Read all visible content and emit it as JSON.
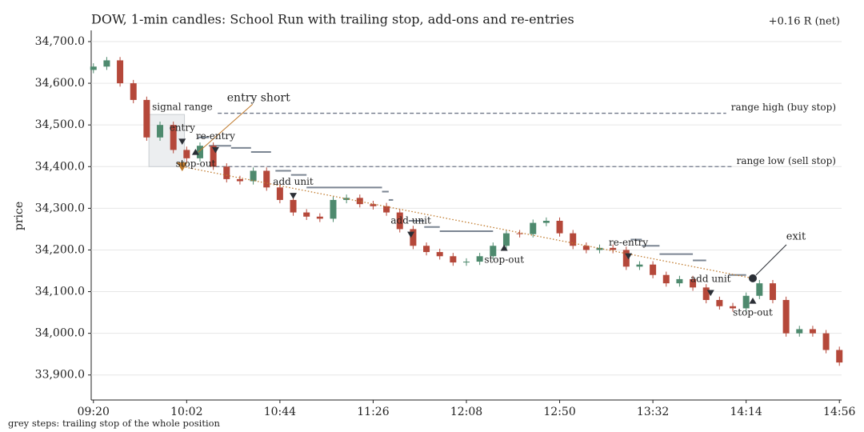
{
  "chart_data": {
    "type": "candlestick",
    "title": "DOW, 1-min candles: School Run with trailing stop, add-ons and re-entries",
    "result": "+0.16 R (net)",
    "result_color": "#b8702f",
    "ylabel": "price",
    "caption": "grey steps: trailing stop of the whole position",
    "up_color": "#4e8a6e",
    "down_color": "#b5483a",
    "grid": true,
    "xlim": [
      "09:19",
      "14:57"
    ],
    "xticks": [
      "09:20",
      "10:02",
      "10:44",
      "11:26",
      "12:08",
      "12:50",
      "13:32",
      "14:14",
      "14:56"
    ],
    "ylim": [
      33840,
      34723
    ],
    "yticks": [
      {
        "value": 33900,
        "label": "33,900.0"
      },
      {
        "value": 34000,
        "label": "34,000.0"
      },
      {
        "value": 34100,
        "label": "34,100.0"
      },
      {
        "value": 34200,
        "label": "34,200.0"
      },
      {
        "value": 34300,
        "label": "34,300.0"
      },
      {
        "value": 34400,
        "label": "34,400.0"
      },
      {
        "value": 34500,
        "label": "34,500.0"
      },
      {
        "value": 34600,
        "label": "34,600.0"
      },
      {
        "value": 34700,
        "label": "34,700.0"
      }
    ],
    "x": [
      "09:20",
      "09:26",
      "09:32",
      "09:38",
      "09:44",
      "09:50",
      "09:56",
      "10:02",
      "10:08",
      "10:14",
      "10:20",
      "10:26",
      "10:32",
      "10:38",
      "10:44",
      "10:50",
      "10:56",
      "11:02",
      "11:08",
      "11:14",
      "11:20",
      "11:26",
      "11:32",
      "11:38",
      "11:44",
      "11:50",
      "11:56",
      "12:02",
      "12:08",
      "12:14",
      "12:20",
      "12:26",
      "12:32",
      "12:38",
      "12:44",
      "12:50",
      "12:56",
      "13:02",
      "13:08",
      "13:14",
      "13:20",
      "13:26",
      "13:32",
      "13:38",
      "13:44",
      "13:50",
      "13:56",
      "14:02",
      "14:08",
      "14:14",
      "14:20",
      "14:26",
      "14:32",
      "14:38",
      "14:44",
      "14:50",
      "14:56"
    ],
    "open": [
      34632,
      34640,
      34655,
      34600,
      34560,
      34470,
      34500,
      34440,
      34420,
      34450,
      34400,
      34370,
      34365,
      34390,
      34350,
      34320,
      34290,
      34280,
      34275,
      34320,
      34325,
      34310,
      34305,
      34290,
      34250,
      34210,
      34195,
      34185,
      34170,
      34172,
      34185,
      34210,
      34240,
      34238,
      34265,
      34270,
      34240,
      34210,
      34200,
      34205,
      34200,
      34160,
      34165,
      34140,
      34120,
      34130,
      34110,
      34080,
      34065,
      34060,
      34090,
      34120,
      34080,
      34000,
      34010,
      34000,
      33960
    ],
    "high": [
      34648,
      34663,
      34663,
      34608,
      34568,
      34508,
      34508,
      34448,
      34458,
      34458,
      34408,
      34378,
      34398,
      34398,
      34358,
      34328,
      34298,
      34288,
      34328,
      34333,
      34333,
      34318,
      34313,
      34298,
      34258,
      34218,
      34203,
      34193,
      34180,
      34193,
      34218,
      34248,
      34248,
      34273,
      34278,
      34278,
      34248,
      34218,
      34213,
      34213,
      34208,
      34173,
      34173,
      34148,
      34138,
      34138,
      34118,
      34088,
      34073,
      34098,
      34128,
      34128,
      34088,
      34018,
      34018,
      34008,
      33968
    ],
    "low": [
      34624,
      34632,
      34592,
      34552,
      34462,
      34462,
      34432,
      34412,
      34412,
      34392,
      34362,
      34357,
      34357,
      34342,
      34312,
      34282,
      34272,
      34267,
      34267,
      34312,
      34302,
      34297,
      34282,
      34242,
      34202,
      34187,
      34177,
      34162,
      34162,
      34164,
      34177,
      34202,
      34230,
      34230,
      34257,
      34232,
      34202,
      34192,
      34192,
      34192,
      34152,
      34152,
      34132,
      34112,
      34112,
      34102,
      34072,
      34057,
      34052,
      34052,
      34082,
      34072,
      33992,
      33992,
      33992,
      33952,
      33922
    ],
    "close": [
      34640,
      34655,
      34600,
      34560,
      34470,
      34500,
      34440,
      34420,
      34450,
      34400,
      34370,
      34365,
      34390,
      34350,
      34320,
      34290,
      34280,
      34275,
      34320,
      34325,
      34310,
      34305,
      34290,
      34250,
      34210,
      34195,
      34185,
      34170,
      34172,
      34185,
      34210,
      34240,
      34238,
      34265,
      34270,
      34240,
      34210,
      34200,
      34205,
      34200,
      34160,
      34165,
      34140,
      34120,
      34130,
      34110,
      34080,
      34065,
      34060,
      34090,
      34120,
      34080,
      34000,
      34010,
      34000,
      33960,
      33930
    ],
    "signal_range": {
      "label": "signal range",
      "x": [
        "09:45",
        "10:01"
      ],
      "values": [
        34400,
        34525
      ]
    },
    "range_lines": [
      {
        "label": "range high (buy stop)",
        "value": 34528,
        "x": [
          "10:16",
          "14:05"
        ]
      },
      {
        "label": "range low (sell stop)",
        "value": 34400,
        "x": [
          "10:15",
          "14:08"
        ]
      }
    ],
    "trailing_stop": {
      "color": "#7b8592",
      "x": [
        "10:07",
        "10:12",
        "10:22",
        "10:31",
        "10:40",
        "10:42",
        "10:49",
        "10:56",
        "11:30",
        "11:33",
        "11:35",
        "11:42",
        "11:49",
        "11:56",
        "12:20",
        "13:22",
        "13:27",
        "13:35",
        "13:50",
        "13:56",
        "14:06",
        "14:14"
      ],
      "values": [
        34470,
        34450,
        34445,
        34435,
        null,
        34390,
        34380,
        34350,
        34340,
        34320,
        null,
        34270,
        34255,
        34245,
        null,
        34225,
        34210,
        34190,
        34175,
        null,
        34140,
        null
      ]
    },
    "entry_short": {
      "label": "entry short",
      "x": "10:00",
      "price": 34400,
      "color": "#c07a2c"
    },
    "exit": {
      "label": "exit",
      "x": "14:17",
      "price": 34132
    },
    "events": [
      {
        "label": "entry",
        "kind": "sell",
        "x": "10:00",
        "price": 34460
      },
      {
        "label": "stop-out",
        "kind": "stop",
        "x": "10:06",
        "price": 34435
      },
      {
        "label": "re-entry",
        "kind": "sell",
        "x": "10:15",
        "price": 34440
      },
      {
        "label": "add unit",
        "kind": "sell",
        "x": "10:50",
        "price": 34330
      },
      {
        "label": "add unit",
        "kind": "sell",
        "x": "11:43",
        "price": 34237
      },
      {
        "label": "stop-out",
        "kind": "stop",
        "x": "12:25",
        "price": 34205
      },
      {
        "label": "re-entry",
        "kind": "sell",
        "x": "13:21",
        "price": 34185
      },
      {
        "label": "add unit",
        "kind": "sell",
        "x": "13:58",
        "price": 34097
      },
      {
        "label": "stop-out",
        "kind": "stop",
        "x": "14:17",
        "price": 34078
      }
    ]
  }
}
